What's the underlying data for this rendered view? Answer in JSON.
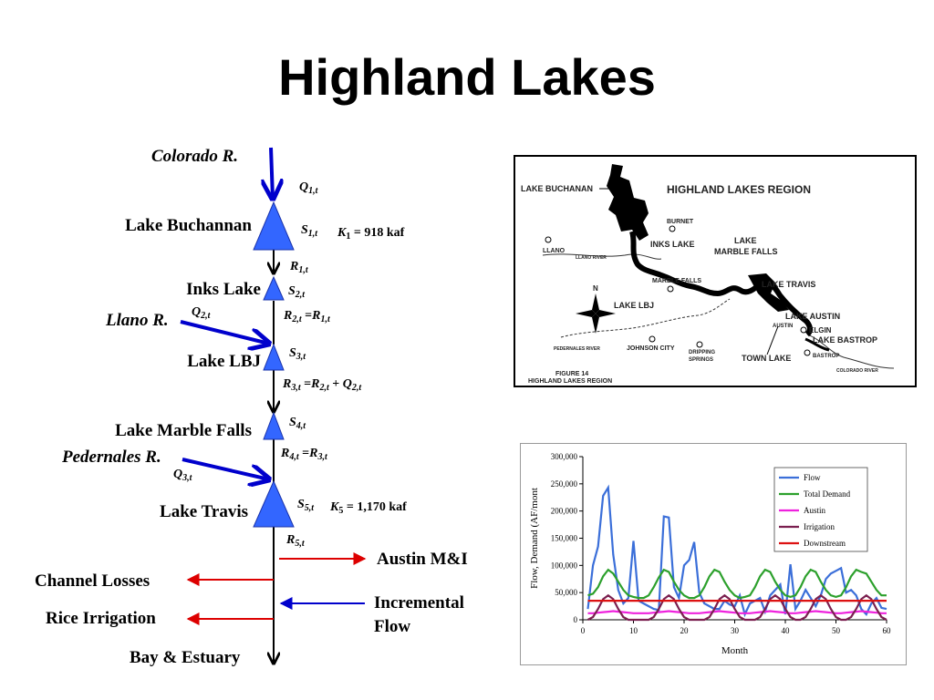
{
  "title": "Highland Lakes",
  "diagram": {
    "rivers": {
      "colorado": "Colorado R.",
      "llano": "Llano R.",
      "pedernales": "Pedernales R."
    },
    "lakes": {
      "buchanan": "Lake Buchannan",
      "inks": "Inks Lake",
      "lbj": "Lake LBJ",
      "marble_falls": "Lake Marble Falls",
      "travis": "Lake Travis"
    },
    "vars": {
      "q1": "Q",
      "q1_sub": "1,t",
      "q2": "Q",
      "q2_sub": "2,t",
      "q3": "Q",
      "q3_sub": "3,t",
      "s1": "S",
      "s1_sub": "1,t",
      "s2": "S",
      "s2_sub": "2,t",
      "s3": "S",
      "s3_sub": "3,t",
      "s4": "S",
      "s4_sub": "4,t",
      "s5": "S",
      "s5_sub": "5,t",
      "r1": "R",
      "r1_sub": "1,t",
      "r5": "R",
      "r5_sub": "5,t"
    },
    "k1": {
      "k": "K",
      "sub": "1",
      "value": " = 918 kaf"
    },
    "k5": {
      "k": "K",
      "sub": "5",
      "value": " = 1,170 kaf"
    },
    "eq_r2": {
      "a": "R",
      "a_sub": "2,t",
      "op": " =",
      "b": "R",
      "b_sub": "1,t"
    },
    "eq_r3": {
      "a": "R",
      "a_sub": "3,t",
      "op": " =",
      "b": "R",
      "b_sub": "2,t",
      "op2": " + ",
      "c": "Q",
      "c_sub": "2,t"
    },
    "eq_r4": {
      "a": "R",
      "a_sub": "4,t",
      "op": " =",
      "b": "R",
      "b_sub": "3,t"
    },
    "outflows": {
      "austin": "Austin M&I",
      "channel": "Channel Losses",
      "rice": "Rice Irrigation",
      "incremental_1": "Incremental",
      "incremental_2": "Flow",
      "bay": "Bay & Estuary"
    },
    "colors": {
      "lake": "#3366ff",
      "river": "#0000cc",
      "outflow": "#dd0000",
      "inflow": "#0000cc"
    }
  },
  "map": {
    "labels": {
      "buchanan": "LAKE BUCHANAN",
      "region": "HIGHLAND LAKES REGION",
      "burnet": "BURNET",
      "llano": "LLANO",
      "llano_river": "LLANO RIVER",
      "inks": "INKS LAKE",
      "lake1": "LAKE",
      "marble_falls": "MARBLE FALLS",
      "marble_falls_town": "MARBLE FALLS",
      "lake_travis": "LAKE TRAVIS",
      "lake_lbj": "LAKE LBJ",
      "lake_austin": "LAKE AUSTIN",
      "austin": "AUSTIN",
      "elgin": "ELGIN",
      "lake_bastrop": "LAKE BASTROP",
      "bastrop": "BASTROP",
      "pedernales_river": "PEDERNALES RIVER",
      "johnson_city": "JOHNSON CITY",
      "dripping_1": "DRIPPING",
      "dripping_2": "SPRINGS",
      "town_lake": "TOWN LAKE",
      "colorado_river": "COLORADO RIVER",
      "figure_1": "FIGURE 14",
      "figure_2": "HIGHLAND LAKES REGION",
      "north": "N"
    }
  },
  "chart_data": {
    "type": "line",
    "x": [
      1,
      2,
      3,
      4,
      5,
      6,
      7,
      8,
      9,
      10,
      11,
      12,
      13,
      14,
      15,
      16,
      17,
      18,
      19,
      20,
      21,
      22,
      23,
      24,
      25,
      26,
      27,
      28,
      29,
      30,
      31,
      32,
      33,
      34,
      35,
      36,
      37,
      38,
      39,
      40,
      41,
      42,
      43,
      44,
      45,
      46,
      47,
      48,
      49,
      50,
      51,
      52,
      53,
      54,
      55,
      56,
      57,
      58,
      59,
      60
    ],
    "series": [
      {
        "name": "Flow",
        "color": "#3b6fd9",
        "values": [
          20000,
          100000,
          135000,
          228000,
          243000,
          120000,
          55000,
          30000,
          40000,
          145000,
          35000,
          30000,
          25000,
          20000,
          18000,
          190000,
          188000,
          60000,
          40000,
          100000,
          110000,
          143000,
          50000,
          30000,
          25000,
          20000,
          20000,
          35000,
          28000,
          25000,
          45000,
          10000,
          30000,
          35000,
          40000,
          15000,
          45000,
          55000,
          65000,
          10000,
          102000,
          20000,
          35000,
          55000,
          40000,
          25000,
          45000,
          75000,
          85000,
          90000,
          95000,
          50000,
          55000,
          45000,
          20000,
          10000,
          30000,
          40000,
          22000,
          20000
        ]
      },
      {
        "name": "Total Demand",
        "color": "#2ca02c",
        "values": [
          45000,
          48000,
          60000,
          80000,
          92000,
          85000,
          70000,
          55000,
          45000,
          42000,
          40000,
          40000,
          45000,
          60000,
          78000,
          92000,
          88000,
          70000,
          55000,
          45000,
          40000,
          40000,
          45000,
          60000,
          80000,
          92000,
          88000,
          70000,
          55000,
          45000,
          40000,
          42000,
          45000,
          60000,
          80000,
          92000,
          88000,
          70000,
          55000,
          45000,
          42000,
          45000,
          60000,
          80000,
          92000,
          88000,
          70000,
          55000,
          45000,
          42000,
          45000,
          60000,
          80000,
          92000,
          88000,
          85000,
          70000,
          55000,
          45000,
          45000
        ]
      },
      {
        "name": "Austin",
        "color": "#ee22dd",
        "values": [
          12000,
          12000,
          13000,
          14000,
          15000,
          16000,
          15000,
          14000,
          13000,
          12000,
          12000,
          12000,
          12000,
          13000,
          14000,
          15000,
          16000,
          15000,
          14000,
          13000,
          12000,
          12000,
          12000,
          13000,
          14000,
          15000,
          16000,
          15000,
          14000,
          13000,
          12000,
          12000,
          12000,
          13000,
          14000,
          15000,
          16000,
          15000,
          14000,
          13000,
          12000,
          12000,
          13000,
          14000,
          15000,
          16000,
          15000,
          14000,
          13000,
          12000,
          12000,
          13000,
          14000,
          15000,
          16000,
          15000,
          14000,
          13000,
          12000,
          12000
        ]
      },
      {
        "name": "Irrigation",
        "color": "#7a1f4f",
        "values": [
          0,
          5000,
          20000,
          38000,
          45000,
          38000,
          20000,
          5000,
          0,
          0,
          0,
          0,
          0,
          5000,
          20000,
          38000,
          45000,
          38000,
          20000,
          5000,
          0,
          0,
          0,
          0,
          5000,
          20000,
          38000,
          45000,
          38000,
          20000,
          5000,
          0,
          0,
          0,
          5000,
          20000,
          38000,
          45000,
          38000,
          20000,
          5000,
          0,
          0,
          5000,
          20000,
          38000,
          45000,
          38000,
          20000,
          5000,
          0,
          0,
          5000,
          20000,
          38000,
          45000,
          38000,
          20000,
          5000,
          0
        ]
      },
      {
        "name": "Downstream",
        "color": "#dd1111",
        "values": [
          35000,
          35000,
          35000,
          35000,
          35000,
          35000,
          35000,
          35000,
          35000,
          35000,
          35000,
          35000,
          35000,
          35000,
          35000,
          35000,
          35000,
          35000,
          35000,
          35000,
          35000,
          35000,
          35000,
          35000,
          35000,
          35000,
          35000,
          35000,
          35000,
          35000,
          35000,
          35000,
          35000,
          35000,
          35000,
          35000,
          35000,
          35000,
          35000,
          35000,
          35000,
          35000,
          35000,
          35000,
          35000,
          35000,
          35000,
          35000,
          35000,
          35000,
          35000,
          35000,
          35000,
          35000,
          35000,
          35000,
          35000,
          35000,
          35000,
          35000
        ]
      }
    ],
    "xlabel": "Month",
    "ylabel": "Flow, Demand (AF/mont",
    "xlim": [
      0,
      60
    ],
    "ylim": [
      0,
      300000
    ],
    "xticks": [
      "0",
      "10",
      "20",
      "30",
      "40",
      "50",
      "60"
    ],
    "yticks": [
      "0",
      "50,000",
      "100,000",
      "150,000",
      "200,000",
      "250,000",
      "300,000"
    ],
    "legend": "top-right",
    "grid": false
  }
}
